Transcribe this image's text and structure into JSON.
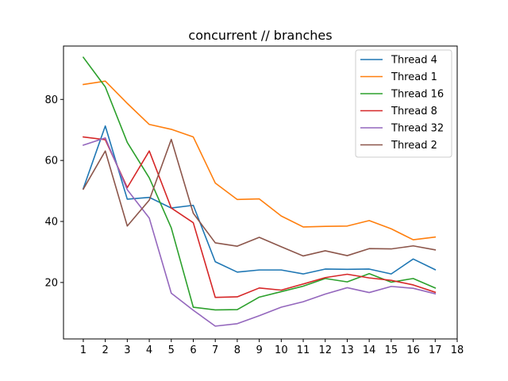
{
  "chart_data": {
    "type": "line",
    "title": "concurrent // branches",
    "xlabel": "",
    "ylabel": "",
    "x": [
      1,
      2,
      3,
      4,
      5,
      6,
      7,
      8,
      9,
      10,
      11,
      12,
      13,
      14,
      15,
      16,
      17
    ],
    "xticks": [
      1,
      2,
      3,
      4,
      5,
      6,
      7,
      8,
      9,
      10,
      11,
      12,
      13,
      14,
      15,
      16,
      17,
      18
    ],
    "yticks": [
      20,
      40,
      60,
      80
    ],
    "xlim": [
      0.1,
      18
    ],
    "ylim": [
      1.5,
      97.5
    ],
    "grid": false,
    "legend_position": "top-right",
    "series": [
      {
        "name": "Thread 4",
        "color": "#1f77b4",
        "values": [
          50.8,
          71.3,
          47.3,
          47.9,
          44.4,
          45.3,
          26.8,
          23.4,
          24.1,
          24.1,
          22.8,
          24.4,
          24.3,
          24.4,
          22.8,
          27.7,
          24.2
        ]
      },
      {
        "name": "Thread 1",
        "color": "#ff7f0e",
        "values": [
          84.9,
          86.0,
          78.7,
          71.8,
          70.2,
          67.7,
          52.6,
          47.2,
          47.4,
          41.8,
          38.2,
          38.4,
          38.5,
          40.3,
          37.6,
          34.0,
          34.9
        ]
      },
      {
        "name": "Thread 16",
        "color": "#2ca02c",
        "values": [
          93.8,
          84.1,
          65.9,
          54.3,
          37.9,
          11.9,
          11.0,
          11.1,
          15.2,
          17.0,
          18.8,
          21.3,
          20.2,
          22.9,
          20.1,
          21.3,
          18.2
        ]
      },
      {
        "name": "Thread 8",
        "color": "#d62728",
        "values": [
          67.7,
          66.8,
          51.1,
          63.1,
          44.4,
          39.6,
          15.1,
          15.3,
          18.2,
          17.5,
          19.5,
          21.6,
          22.7,
          21.5,
          20.7,
          19.2,
          16.8
        ]
      },
      {
        "name": "Thread 32",
        "color": "#9467bd",
        "values": [
          65.0,
          67.4,
          50.4,
          41.1,
          16.5,
          10.9,
          5.7,
          6.5,
          9.1,
          11.9,
          13.7,
          16.2,
          18.3,
          16.7,
          18.7,
          18.1,
          16.3
        ]
      },
      {
        "name": "Thread 2",
        "color": "#8c564b",
        "values": [
          50.6,
          63.1,
          38.5,
          47.0,
          66.9,
          42.7,
          33.0,
          31.9,
          34.8,
          31.7,
          28.7,
          30.4,
          28.8,
          31.1,
          31.0,
          32.0,
          30.7
        ]
      }
    ]
  }
}
